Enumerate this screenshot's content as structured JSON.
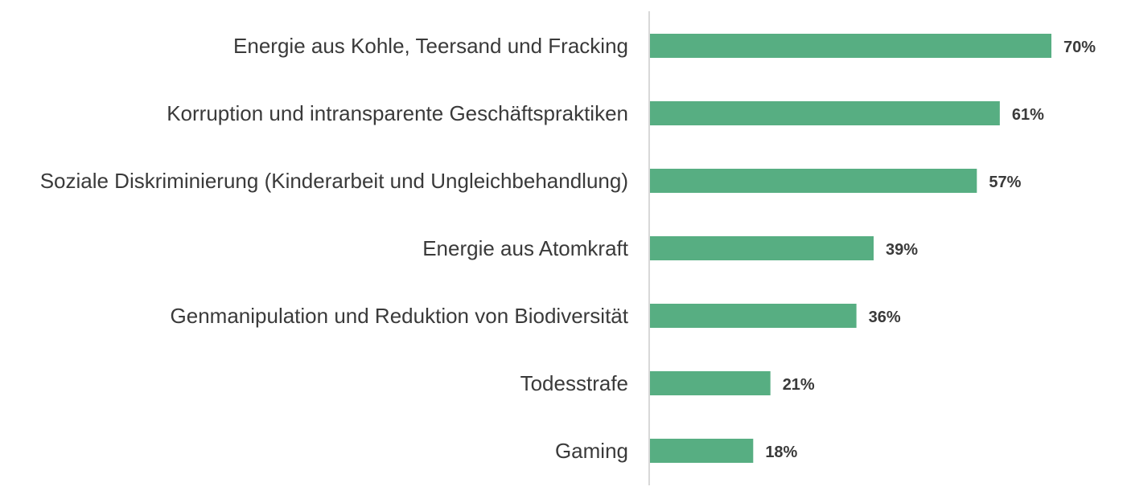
{
  "chart_data": {
    "type": "bar",
    "orientation": "horizontal",
    "categories": [
      "Energie aus Kohle, Teersand und Fracking",
      "Korruption und intransparente Geschäftspraktiken",
      "Soziale Diskriminierung (Kinderarbeit und Ungleichbehandlung)",
      "Energie aus Atomkraft",
      "Genmanipulation und Reduktion von Biodiversität",
      "Todesstrafe",
      "Gaming"
    ],
    "values": [
      70,
      61,
      57,
      39,
      36,
      21,
      18
    ],
    "value_labels": [
      "70%",
      "61%",
      "57%",
      "39%",
      "36%",
      "21%",
      "18%"
    ],
    "unit": "%",
    "xlim": [
      0,
      70
    ],
    "grid": false,
    "legend": "none",
    "colors": {
      "bar": "#57ae82",
      "axis": "#cccccc",
      "text": "#3a3a3a"
    }
  }
}
